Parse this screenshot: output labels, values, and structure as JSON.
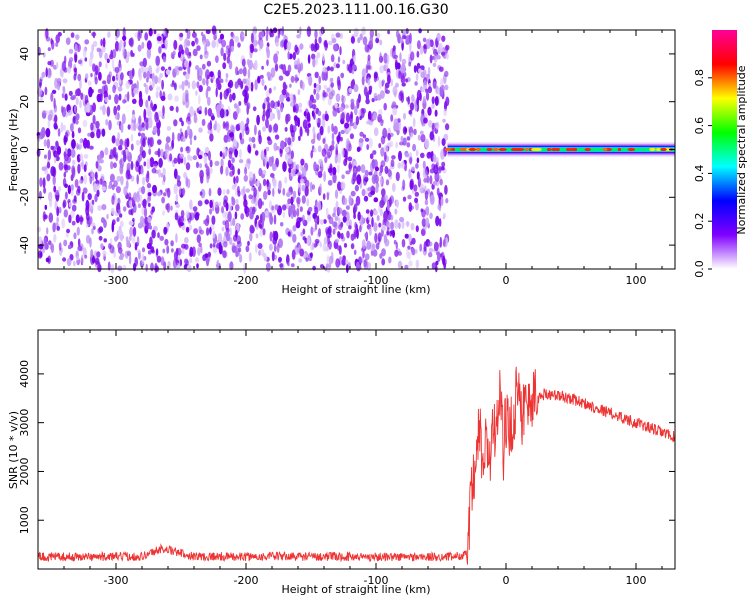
{
  "title": "C2E5.2023.111.00.16.G30",
  "colors": {
    "snr_line": "#ee3333",
    "frame": "#000000"
  },
  "chart_data": [
    {
      "type": "heatmap",
      "name": "spectrogram",
      "xlabel": "Height of straight line (km)",
      "ylabel": "Frequency (Hz)",
      "xlim": [
        -360,
        130
      ],
      "ylim": [
        -50,
        50
      ],
      "x_ticks": [
        -300,
        -200,
        -100,
        0,
        100
      ],
      "y_ticks": [
        -40,
        -20,
        0,
        20,
        40
      ],
      "noise_region_x": [
        -360,
        -45
      ],
      "signal_region_x": [
        -45,
        130
      ],
      "signal_center_freq_hz": 0,
      "colorbar": {
        "label": "Normalized spectral amplitude",
        "range": [
          0,
          1
        ],
        "ticks": [
          0.0,
          0.2,
          0.4,
          0.6,
          0.8
        ],
        "colors": [
          "#ffffff",
          "#7f00ff",
          "#0000ff",
          "#00ffff",
          "#00ff00",
          "#ffff00",
          "#ff0000",
          "#ff0099"
        ]
      }
    },
    {
      "type": "line",
      "name": "snr",
      "xlabel": "Height of straight line (km)",
      "ylabel": "SNR (10 * v/v)",
      "xlim": [
        -360,
        130
      ],
      "ylim": [
        0,
        4900
      ],
      "x_ticks": [
        -300,
        -200,
        -100,
        0,
        100
      ],
      "y_ticks": [
        1000,
        2000,
        3000,
        4000
      ],
      "series": [
        {
          "x": [
            -360,
            -320,
            -280,
            -265,
            -240,
            -200,
            -180,
            -150,
            -100,
            -60,
            -40,
            -30,
            -27,
            -25,
            -22,
            -20,
            -18,
            -15,
            -12,
            -10,
            -7,
            -5,
            -2,
            0,
            3,
            6,
            10,
            12,
            15,
            20,
            25,
            30,
            40,
            50,
            60,
            70,
            80,
            90,
            100,
            110,
            120,
            130
          ],
          "y": [
            250,
            250,
            260,
            420,
            260,
            250,
            260,
            255,
            250,
            245,
            255,
            300,
            1300,
            1700,
            2400,
            3000,
            2000,
            2600,
            2300,
            2800,
            2700,
            3900,
            2500,
            3000,
            2800,
            3200,
            4000,
            3200,
            3300,
            3500,
            3500,
            3600,
            3550,
            3500,
            3400,
            3300,
            3200,
            3100,
            3000,
            2900,
            2800,
            2700
          ]
        }
      ]
    }
  ]
}
